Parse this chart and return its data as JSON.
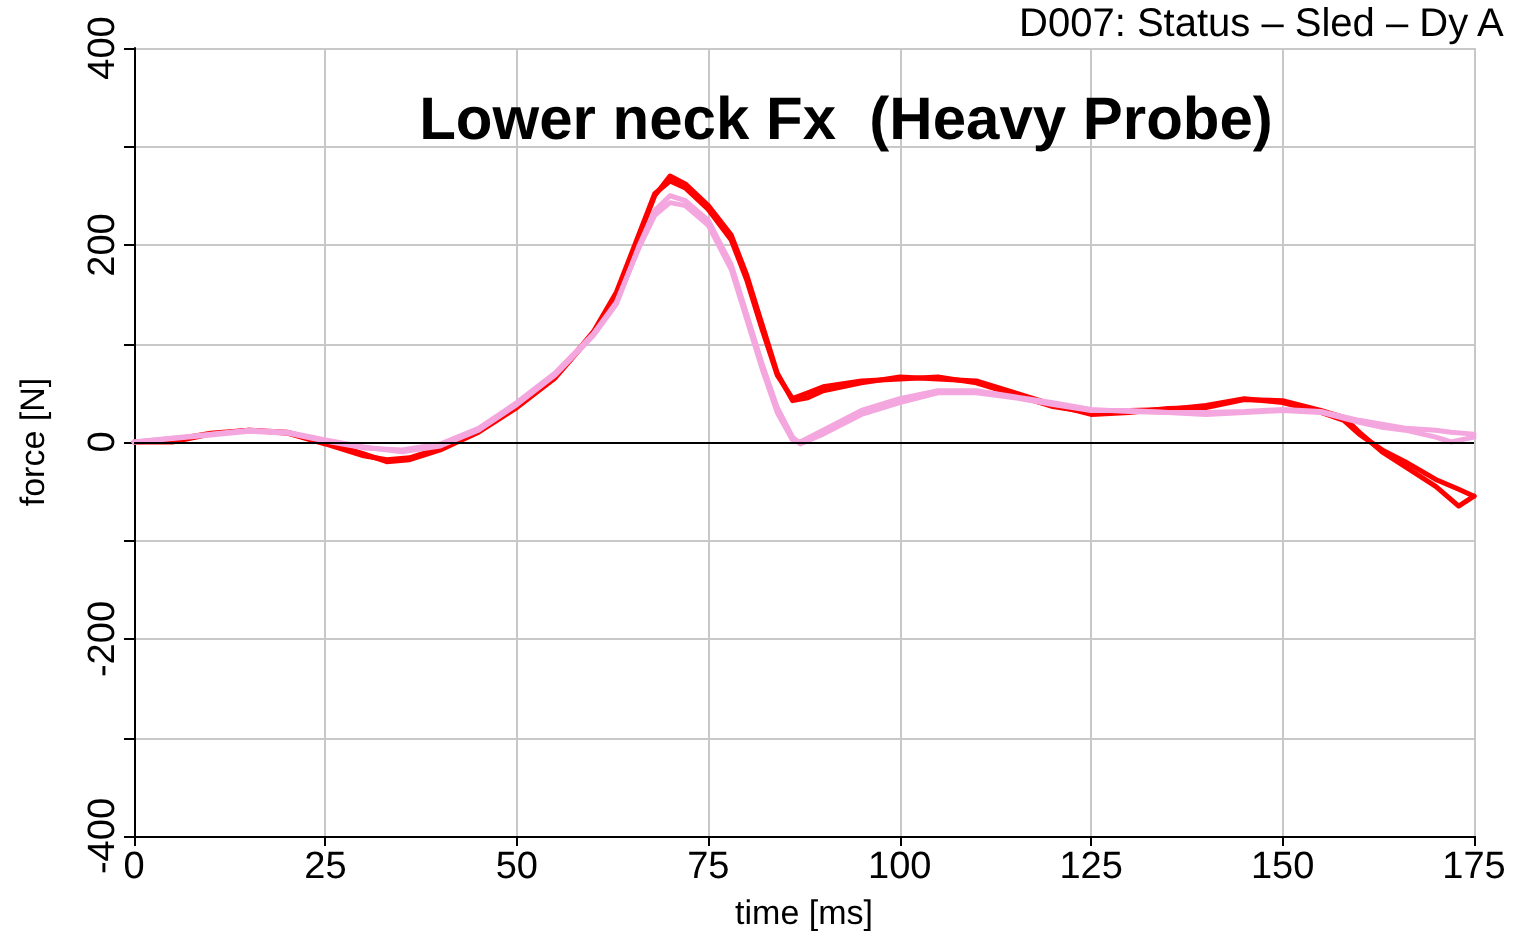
{
  "chart_data": {
    "type": "line",
    "title": "Lower neck Fx  (Heavy Probe)",
    "xlabel": "time [ms]",
    "ylabel": "force [N]",
    "annotations": [
      "D007: Status – Sled – Dy A"
    ],
    "xlim": [
      0,
      175
    ],
    "xticks": [
      0,
      25,
      50,
      75,
      100,
      125,
      150,
      175
    ],
    "ylim": [
      -400,
      400
    ],
    "yticks": [
      -400,
      {
        "value": -300,
        "label": null
      },
      -200,
      {
        "value": -100,
        "label": null
      },
      0,
      {
        "value": 100,
        "label": null
      },
      200,
      {
        "value": 300,
        "label": null
      },
      400
    ],
    "grid": true,
    "marker": "none",
    "line_style": "solid",
    "ref_lines": [
      {
        "axis": "y",
        "value": 0,
        "label": null,
        "color": "#000000"
      }
    ],
    "series": [
      {
        "color": "#ff0000",
        "x": [
          0,
          5,
          10,
          15,
          20,
          25,
          30,
          33,
          36,
          40,
          45,
          50,
          55,
          60,
          63,
          66,
          68,
          70,
          72,
          75,
          78,
          80,
          82,
          84,
          86,
          88,
          90,
          95,
          100,
          105,
          110,
          115,
          120,
          125,
          130,
          135,
          140,
          145,
          150,
          155,
          158,
          160,
          163,
          166,
          170,
          173,
          175
        ],
        "values": [
          0,
          0,
          8,
          12,
          10,
          0,
          -12,
          -20,
          -18,
          -8,
          10,
          35,
          65,
          110,
          150,
          210,
          250,
          270,
          262,
          240,
          210,
          170,
          120,
          70,
          42,
          45,
          52,
          60,
          66,
          64,
          62,
          50,
          38,
          28,
          30,
          34,
          35,
          43,
          42,
          32,
          25,
          10,
          -10,
          -25,
          -45,
          -65,
          -55
        ]
      },
      {
        "color": "#ff0000",
        "x": [
          0,
          5,
          10,
          15,
          20,
          25,
          30,
          33,
          36,
          40,
          45,
          50,
          55,
          60,
          63,
          66,
          68,
          70,
          72,
          75,
          78,
          80,
          82,
          84,
          86,
          88,
          90,
          95,
          100,
          105,
          110,
          115,
          120,
          125,
          130,
          135,
          140,
          145,
          150,
          155,
          158,
          160,
          163,
          166,
          170,
          173,
          175
        ],
        "values": [
          0,
          2,
          9,
          12,
          9,
          -2,
          -14,
          -18,
          -16,
          -6,
          12,
          36,
          66,
          112,
          152,
          212,
          252,
          265,
          258,
          236,
          205,
          165,
          115,
          68,
          44,
          50,
          56,
          62,
          64,
          66,
          60,
          48,
          36,
          30,
          32,
          33,
          37,
          44,
          40,
          30,
          22,
          8,
          -8,
          -20,
          -38,
          -48,
          -55
        ]
      },
      {
        "color": "#f4a6de",
        "x": [
          0,
          10,
          15,
          20,
          25,
          30,
          35,
          40,
          45,
          50,
          55,
          60,
          63,
          66,
          68,
          70,
          72,
          75,
          78,
          80,
          82,
          84,
          86,
          87,
          90,
          95,
          100,
          105,
          110,
          115,
          120,
          125,
          130,
          135,
          140,
          145,
          150,
          155,
          160,
          163,
          166,
          170,
          172,
          175
        ],
        "values": [
          0,
          8,
          12,
          10,
          2,
          -5,
          -10,
          -4,
          12,
          38,
          68,
          108,
          140,
          200,
          235,
          250,
          245,
          225,
          180,
          130,
          80,
          35,
          5,
          -2,
          8,
          28,
          40,
          50,
          50,
          45,
          38,
          32,
          32,
          30,
          28,
          30,
          32,
          30,
          20,
          15,
          12,
          5,
          0,
          5
        ]
      },
      {
        "color": "#f4a6de",
        "x": [
          0,
          10,
          15,
          20,
          25,
          30,
          35,
          40,
          45,
          50,
          55,
          60,
          63,
          66,
          68,
          70,
          72,
          75,
          78,
          80,
          82,
          84,
          86,
          87,
          90,
          95,
          100,
          105,
          110,
          115,
          120,
          125,
          130,
          135,
          140,
          145,
          150,
          155,
          160,
          163,
          166,
          170,
          172,
          175
        ],
        "values": [
          0,
          7,
          11,
          9,
          1,
          -6,
          -8,
          -2,
          14,
          40,
          70,
          110,
          142,
          198,
          230,
          243,
          240,
          220,
          175,
          125,
          75,
          30,
          2,
          0,
          12,
          32,
          44,
          52,
          52,
          46,
          40,
          33,
          31,
          30,
          30,
          31,
          33,
          31,
          22,
          18,
          14,
          12,
          10,
          8
        ]
      }
    ]
  }
}
